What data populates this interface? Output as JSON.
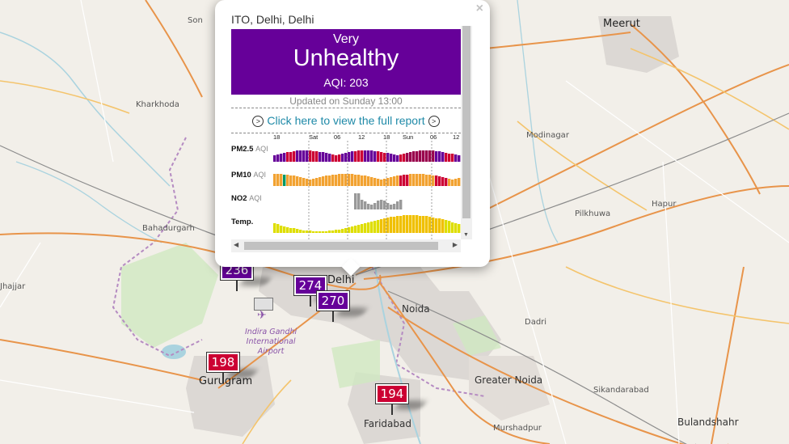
{
  "colors": {
    "very_unhealthy": "#660099",
    "unhealthy": "#cc0033",
    "moderate": "#f2a231",
    "good": "#009966",
    "temp": "#dede00",
    "no2": "#999999"
  },
  "places": [
    {
      "name": "Meerut",
      "size": "big"
    },
    {
      "name": "Kharkhoda",
      "size": "small"
    },
    {
      "name": "Modinagar",
      "size": "small"
    },
    {
      "name": "Bahadurgarh",
      "size": "small"
    },
    {
      "name": "Pilkhuwa",
      "size": "small"
    },
    {
      "name": "Hapur",
      "size": "small"
    },
    {
      "name": "Jhajjar",
      "size": "small"
    },
    {
      "name": "Delhi",
      "size": "big"
    },
    {
      "name": "Noida",
      "size": "mid"
    },
    {
      "name": "Dadri",
      "size": "small"
    },
    {
      "name": "Gurugram",
      "size": "big"
    },
    {
      "name": "Greater Noida",
      "size": "mid"
    },
    {
      "name": "Sikandarabad",
      "size": "small"
    },
    {
      "name": "Faridabad",
      "size": "mid"
    },
    {
      "name": "Murshadpur",
      "size": "small"
    },
    {
      "name": "Bulandshahr",
      "size": "mid"
    },
    {
      "name": "Son",
      "size": "small"
    }
  ],
  "airport": {
    "line1": "Indira Gandhi",
    "line2": "International",
    "line3": "Airport"
  },
  "markers": [
    {
      "value": "236",
      "level": "very_unhealthy"
    },
    {
      "value": "274",
      "level": "very_unhealthy"
    },
    {
      "value": "270",
      "level": "very_unhealthy"
    },
    {
      "value": "198",
      "level": "unhealthy"
    },
    {
      "value": "194",
      "level": "unhealthy"
    }
  ],
  "popup": {
    "station": "ITO, Delhi, Delhi",
    "level_line1": "Very",
    "level_line2": "Unhealthy",
    "aqi_text": "AQI: 203",
    "updated": "Updated on Sunday 13:00",
    "report_link": "Click here to view the full report",
    "close": "×",
    "time_labels": [
      "18",
      "Sat",
      "06",
      "12",
      "18",
      "Sun",
      "06",
      "12"
    ],
    "rows": [
      {
        "label": "PM2.5",
        "unit": "AQI"
      },
      {
        "label": "PM10",
        "unit": "AQI"
      },
      {
        "label": "NO2",
        "unit": "AQI"
      },
      {
        "label": "Temp.",
        "unit": ""
      }
    ]
  }
}
